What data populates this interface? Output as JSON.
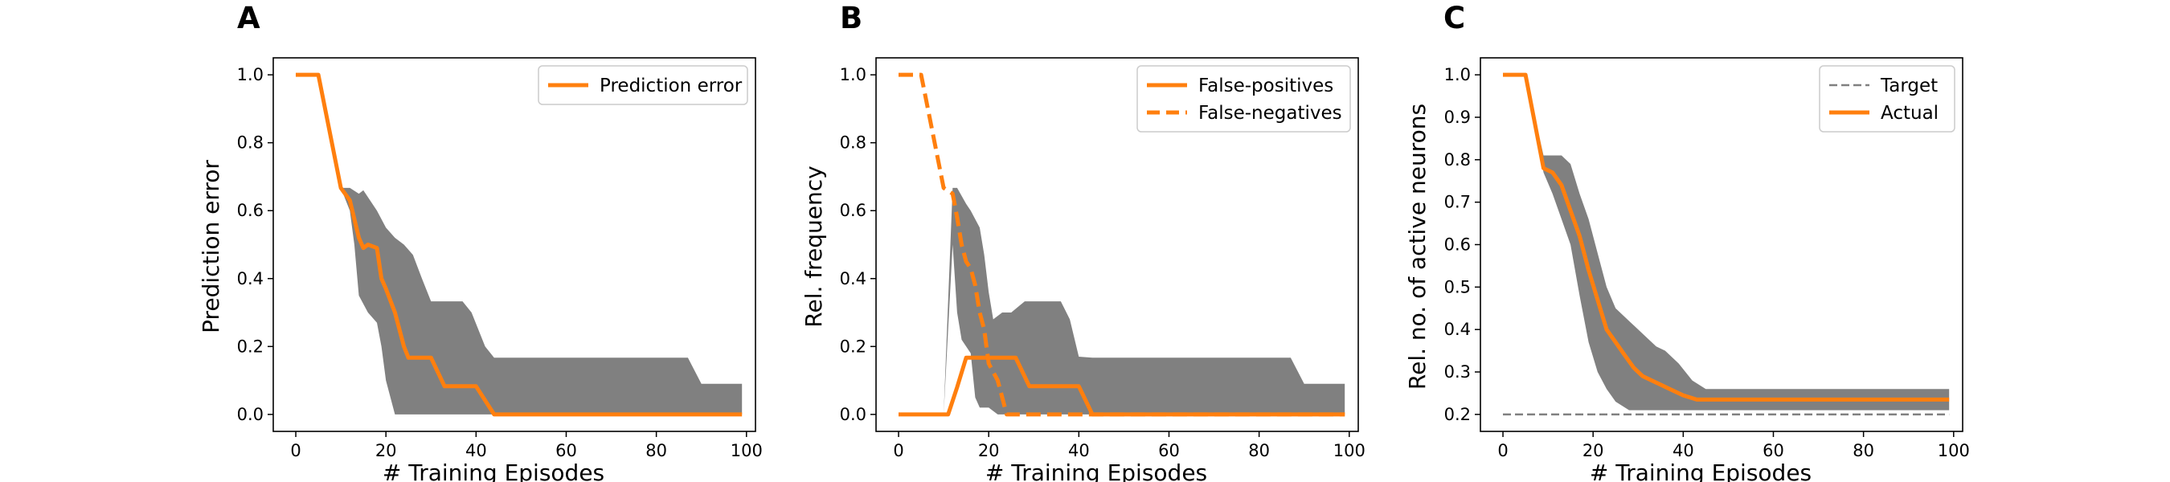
{
  "colors": {
    "line": "#ff7f0e",
    "band": "#808080",
    "target": "#808080",
    "frame": "#000000",
    "legend_border": "#cccccc"
  },
  "chart_data": [
    {
      "panel": "A",
      "type": "line",
      "xlabel": "# Training Episodes",
      "ylabel": "Prediction error",
      "xlim": [
        -5,
        102
      ],
      "ylim": [
        -0.05,
        1.05
      ],
      "xticks": [
        0,
        20,
        40,
        60,
        80,
        100
      ],
      "yticks": [
        0.0,
        0.2,
        0.4,
        0.6,
        0.8,
        1.0
      ],
      "ytick_labels": [
        "0.0",
        "0.2",
        "0.4",
        "0.6",
        "0.8",
        "1.0"
      ],
      "grid": false,
      "legend_position": "top-right",
      "band": {
        "upper": [
          [
            0,
            1.0
          ],
          [
            5,
            1.0
          ],
          [
            10,
            0.667
          ],
          [
            12,
            0.667
          ],
          [
            14,
            0.65
          ],
          [
            15,
            0.66
          ],
          [
            18,
            0.6
          ],
          [
            20,
            0.55
          ],
          [
            22,
            0.52
          ],
          [
            24,
            0.5
          ],
          [
            26,
            0.47
          ],
          [
            28,
            0.4
          ],
          [
            30,
            0.333
          ],
          [
            37,
            0.333
          ],
          [
            39,
            0.3
          ],
          [
            42,
            0.2
          ],
          [
            44,
            0.167
          ],
          [
            87,
            0.167
          ],
          [
            90,
            0.09
          ],
          [
            99,
            0.09
          ]
        ],
        "lower": [
          [
            0,
            1.0
          ],
          [
            5,
            1.0
          ],
          [
            10,
            0.667
          ],
          [
            12,
            0.6
          ],
          [
            13,
            0.5
          ],
          [
            14,
            0.35
          ],
          [
            16,
            0.3
          ],
          [
            18,
            0.27
          ],
          [
            19,
            0.2
          ],
          [
            20,
            0.1
          ],
          [
            22,
            0.0
          ],
          [
            99,
            0.0
          ]
        ]
      },
      "series": [
        {
          "name": "Prediction error",
          "style": "solid",
          "points": [
            [
              0,
              1.0
            ],
            [
              5,
              1.0
            ],
            [
              10,
              0.667
            ],
            [
              12,
              0.63
            ],
            [
              14,
              0.52
            ],
            [
              15,
              0.49
            ],
            [
              16,
              0.5
            ],
            [
              18,
              0.49
            ],
            [
              19,
              0.4
            ],
            [
              20,
              0.37
            ],
            [
              22,
              0.3
            ],
            [
              24,
              0.2
            ],
            [
              25,
              0.167
            ],
            [
              30,
              0.167
            ],
            [
              33,
              0.083
            ],
            [
              40,
              0.083
            ],
            [
              44,
              0.0
            ],
            [
              99,
              0.0
            ]
          ]
        }
      ]
    },
    {
      "panel": "B",
      "type": "line",
      "xlabel": "# Training Episodes",
      "ylabel": "Rel. frequency",
      "xlim": [
        -5,
        102
      ],
      "ylim": [
        -0.05,
        1.05
      ],
      "xticks": [
        0,
        20,
        40,
        60,
        80,
        100
      ],
      "yticks": [
        0.0,
        0.2,
        0.4,
        0.6,
        0.8,
        1.0
      ],
      "ytick_labels": [
        "0.0",
        "0.2",
        "0.4",
        "0.6",
        "0.8",
        "1.0"
      ],
      "grid": false,
      "legend_position": "top-right",
      "band": {
        "upper": [
          [
            0,
            0.0
          ],
          [
            10,
            0.0
          ],
          [
            12,
            0.667
          ],
          [
            13,
            0.667
          ],
          [
            15,
            0.62
          ],
          [
            16,
            0.6
          ],
          [
            18,
            0.55
          ],
          [
            19,
            0.47
          ],
          [
            20,
            0.36
          ],
          [
            21,
            0.28
          ],
          [
            23,
            0.3
          ],
          [
            25,
            0.3
          ],
          [
            28,
            0.333
          ],
          [
            36,
            0.333
          ],
          [
            38,
            0.28
          ],
          [
            40,
            0.17
          ],
          [
            43,
            0.167
          ],
          [
            87,
            0.167
          ],
          [
            90,
            0.09
          ],
          [
            99,
            0.09
          ]
        ],
        "lower": [
          [
            0,
            0.0
          ],
          [
            10,
            0.0
          ],
          [
            12,
            0.5
          ],
          [
            13,
            0.3
          ],
          [
            14,
            0.22
          ],
          [
            15,
            0.2
          ],
          [
            16,
            0.18
          ],
          [
            17,
            0.05
          ],
          [
            18,
            0.02
          ],
          [
            20,
            0.02
          ],
          [
            22,
            0.0
          ],
          [
            99,
            0.0
          ]
        ]
      },
      "series": [
        {
          "name": "False-positives",
          "style": "solid",
          "points": [
            [
              0,
              0.0
            ],
            [
              11,
              0.0
            ],
            [
              13,
              0.08
            ],
            [
              15,
              0.167
            ],
            [
              26,
              0.167
            ],
            [
              29,
              0.083
            ],
            [
              40,
              0.083
            ],
            [
              43,
              0.0
            ],
            [
              99,
              0.0
            ]
          ]
        },
        {
          "name": "False-negatives",
          "style": "dashed",
          "points": [
            [
              0,
              1.0
            ],
            [
              5,
              1.0
            ],
            [
              10,
              0.667
            ],
            [
              12,
              0.65
            ],
            [
              13,
              0.58
            ],
            [
              14,
              0.5
            ],
            [
              15,
              0.45
            ],
            [
              16,
              0.43
            ],
            [
              17,
              0.38
            ],
            [
              18,
              0.3
            ],
            [
              19,
              0.25
            ],
            [
              20,
              0.15
            ],
            [
              22,
              0.1
            ],
            [
              24,
              0.0
            ],
            [
              99,
              0.0
            ]
          ]
        }
      ]
    },
    {
      "panel": "C",
      "type": "line",
      "xlabel": "# Training Episodes",
      "ylabel": "Rel. no. of active neurons",
      "xlim": [
        -5,
        102
      ],
      "ylim": [
        0.16,
        1.04
      ],
      "xticks": [
        0,
        20,
        40,
        60,
        80,
        100
      ],
      "yticks": [
        0.2,
        0.3,
        0.4,
        0.5,
        0.6,
        0.7,
        0.8,
        0.9,
        1.0
      ],
      "ytick_labels": [
        "0.2",
        "0.3",
        "0.4",
        "0.5",
        "0.6",
        "0.7",
        "0.8",
        "0.9",
        "1.0"
      ],
      "grid": false,
      "legend_position": "top-right",
      "band": {
        "upper": [
          [
            0,
            1.0
          ],
          [
            5,
            1.0
          ],
          [
            9,
            0.81
          ],
          [
            13,
            0.81
          ],
          [
            15,
            0.79
          ],
          [
            17,
            0.72
          ],
          [
            19,
            0.66
          ],
          [
            21,
            0.58
          ],
          [
            23,
            0.5
          ],
          [
            25,
            0.45
          ],
          [
            28,
            0.42
          ],
          [
            32,
            0.38
          ],
          [
            34,
            0.36
          ],
          [
            36,
            0.35
          ],
          [
            39,
            0.32
          ],
          [
            42,
            0.28
          ],
          [
            45,
            0.26
          ],
          [
            99,
            0.26
          ]
        ],
        "lower": [
          [
            0,
            1.0
          ],
          [
            5,
            1.0
          ],
          [
            9,
            0.77
          ],
          [
            11,
            0.72
          ],
          [
            13,
            0.66
          ],
          [
            15,
            0.6
          ],
          [
            17,
            0.48
          ],
          [
            19,
            0.37
          ],
          [
            21,
            0.3
          ],
          [
            23,
            0.26
          ],
          [
            25,
            0.23
          ],
          [
            28,
            0.21
          ],
          [
            99,
            0.21
          ]
        ]
      },
      "series": [
        {
          "name": "Target",
          "style": "dashed-gray",
          "points": [
            [
              0,
              0.2
            ],
            [
              99,
              0.2
            ]
          ]
        },
        {
          "name": "Actual",
          "style": "solid",
          "points": [
            [
              0,
              1.0
            ],
            [
              5,
              1.0
            ],
            [
              9,
              0.78
            ],
            [
              11,
              0.77
            ],
            [
              13,
              0.74
            ],
            [
              15,
              0.68
            ],
            [
              17,
              0.62
            ],
            [
              19,
              0.54
            ],
            [
              21,
              0.47
            ],
            [
              23,
              0.4
            ],
            [
              25,
              0.37
            ],
            [
              27,
              0.34
            ],
            [
              29,
              0.31
            ],
            [
              31,
              0.29
            ],
            [
              33,
              0.28
            ],
            [
              35,
              0.27
            ],
            [
              37,
              0.26
            ],
            [
              40,
              0.245
            ],
            [
              43,
              0.235
            ],
            [
              99,
              0.235
            ]
          ]
        }
      ]
    }
  ]
}
